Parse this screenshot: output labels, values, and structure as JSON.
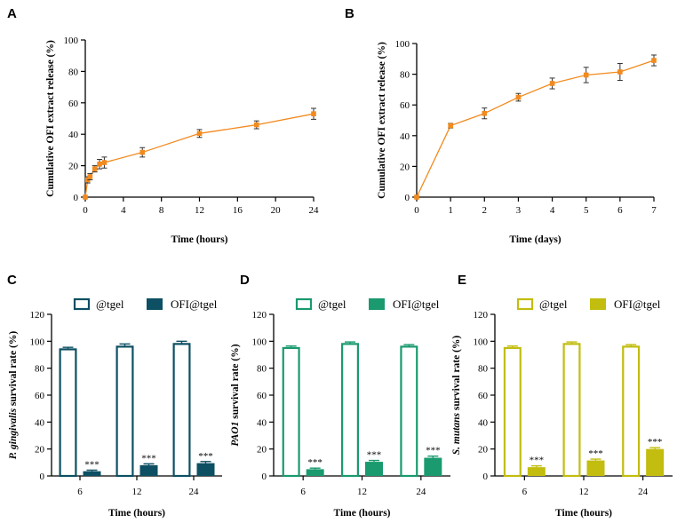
{
  "colors": {
    "release": "#f28a1e",
    "panel_C": "#0d4f63",
    "panel_D": "#1a9a6e",
    "panel_E": "#c2bd0e"
  },
  "chart_data": [
    {
      "panel": "A",
      "type": "line",
      "xlabel": "Time (hours)",
      "ylabel": "Cumulative OFI extract release (%)",
      "xlim": [
        0,
        24
      ],
      "ylim": [
        0,
        100
      ],
      "xticks": [
        0,
        4,
        8,
        12,
        16,
        20,
        24
      ],
      "yticks": [
        0,
        20,
        40,
        60,
        80,
        100
      ],
      "x": [
        0,
        0.25,
        0.5,
        1,
        1.5,
        2,
        6,
        12,
        18,
        24
      ],
      "y": [
        0,
        11,
        13,
        18,
        21,
        22,
        28.5,
        40.5,
        46,
        53
      ],
      "err": [
        0,
        2,
        2,
        2,
        3,
        3.5,
        3,
        2.5,
        2.5,
        3.5
      ],
      "color": "#f28a1e"
    },
    {
      "panel": "B",
      "type": "line",
      "xlabel": "Time (days)",
      "ylabel": "Cumulative OFI extract release (%)",
      "xlim": [
        0,
        7
      ],
      "ylim": [
        0,
        100
      ],
      "xticks": [
        0,
        1,
        2,
        3,
        4,
        5,
        6,
        7
      ],
      "yticks": [
        0,
        20,
        40,
        60,
        80,
        100
      ],
      "x": [
        0,
        1,
        2,
        3,
        4,
        5,
        6,
        7
      ],
      "y": [
        0,
        46.5,
        54.5,
        65,
        74,
        79.5,
        81.5,
        89
      ],
      "err": [
        0,
        1.5,
        3.5,
        2.5,
        3.5,
        5,
        5.5,
        3.5
      ],
      "color": "#f28a1e"
    },
    {
      "panel": "C",
      "type": "bar",
      "xlabel": "Time (hours)",
      "ylabel_italic": "P. gingivalis",
      "ylabel_rest": " survival rate (%)",
      "categories": [
        "6",
        "12",
        "24"
      ],
      "ylim": [
        0,
        120
      ],
      "yticks": [
        0,
        20,
        40,
        60,
        80,
        100,
        120
      ],
      "color": "#0d4f63",
      "series": [
        {
          "name": "@tgel",
          "values": [
            94,
            96,
            98
          ],
          "err": [
            1.5,
            2,
            2
          ],
          "filled": false
        },
        {
          "name": "OFI@tgel",
          "values": [
            3.5,
            8,
            9.5
          ],
          "err": [
            0.8,
            1,
            1.2
          ],
          "filled": true
        }
      ],
      "annotations": [
        "***",
        "***",
        "***"
      ]
    },
    {
      "panel": "D",
      "type": "bar",
      "xlabel": "Time (hours)",
      "ylabel_italic": "PAO1",
      "ylabel_rest": " survival rate (%)",
      "categories": [
        "6",
        "12",
        "24"
      ],
      "ylim": [
        0,
        120
      ],
      "yticks": [
        0,
        20,
        40,
        60,
        80,
        100,
        120
      ],
      "color": "#1a9a6e",
      "series": [
        {
          "name": "@tgel",
          "values": [
            95,
            98,
            96
          ],
          "err": [
            1.5,
            1.5,
            1.5
          ],
          "filled": false
        },
        {
          "name": "OFI@tgel",
          "values": [
            5,
            10.5,
            13.5
          ],
          "err": [
            0.8,
            1,
            1.2
          ],
          "filled": true
        }
      ],
      "annotations": [
        "***",
        "***",
        "***"
      ]
    },
    {
      "panel": "E",
      "type": "bar",
      "xlabel": "Time (hours)",
      "ylabel_italic": "S. mutans",
      "ylabel_rest": " survival rate (%)",
      "categories": [
        "6",
        "12",
        "24"
      ],
      "ylim": [
        0,
        120
      ],
      "yticks": [
        0,
        20,
        40,
        60,
        80,
        100,
        120
      ],
      "color": "#c2bd0e",
      "series": [
        {
          "name": "@tgel",
          "values": [
            95,
            98,
            96
          ],
          "err": [
            1.5,
            1.5,
            1.5
          ],
          "filled": false
        },
        {
          "name": "OFI@tgel",
          "values": [
            6.5,
            11.5,
            20
          ],
          "err": [
            1,
            1,
            1
          ],
          "filled": true
        }
      ],
      "annotations": [
        "***",
        "***",
        "***"
      ]
    }
  ]
}
